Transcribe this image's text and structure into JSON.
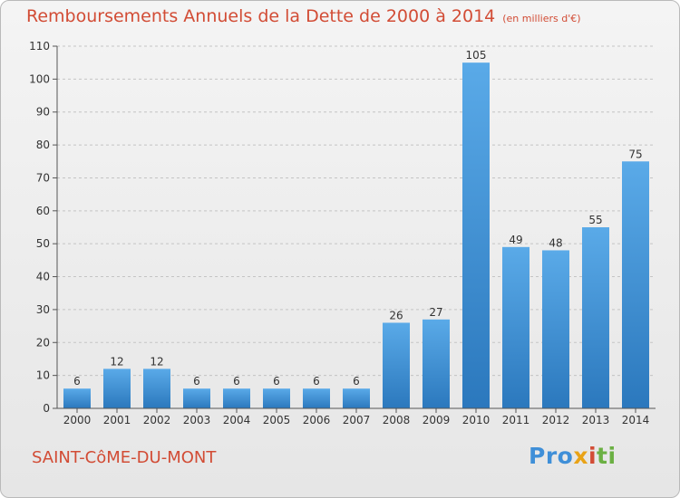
{
  "title": "Remboursements Annuels de la Dette de 2000 à 2014",
  "subtitle": "(en milliers d'€)",
  "town": "SAINT-CôME-DU-MONT",
  "logo": {
    "p1": "Pro",
    "p2": "x",
    "p3": "i",
    "p4": "ti"
  },
  "colors": {
    "accent": "#d24c35",
    "bar": "#4a9de0",
    "bar_dark": "#2f7cc0"
  },
  "chart_data": {
    "type": "bar",
    "categories": [
      "2000",
      "2001",
      "2002",
      "2003",
      "2004",
      "2005",
      "2006",
      "2007",
      "2008",
      "2009",
      "2010",
      "2011",
      "2012",
      "2013",
      "2014"
    ],
    "values": [
      6,
      12,
      12,
      6,
      6,
      6,
      6,
      6,
      26,
      27,
      105,
      49,
      48,
      55,
      75
    ],
    "ylim": [
      0,
      110
    ],
    "yticks": [
      0,
      10,
      20,
      30,
      40,
      50,
      60,
      70,
      80,
      90,
      100,
      110
    ],
    "grid": true,
    "data_labels": true
  }
}
